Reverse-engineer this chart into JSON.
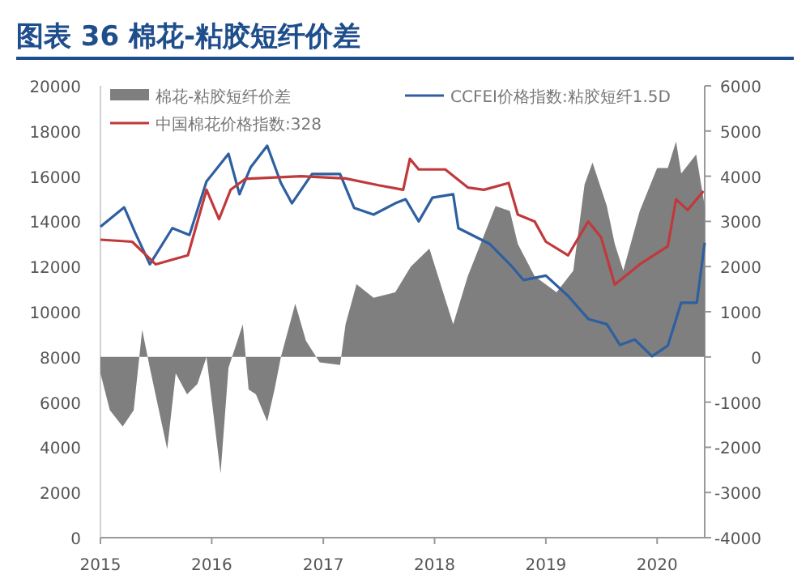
{
  "chart_data": {
    "type": "line",
    "title": "图表 36  棉花-粘胶短纤价差",
    "legend": "top",
    "xlim": [
      "2015-01-01",
      "2020-06-05"
    ],
    "xticks": [
      "2015",
      "2016",
      "2017",
      "2018",
      "2019",
      "2020"
    ],
    "ylim": [
      0,
      20000
    ],
    "yticks": [
      0,
      2000,
      4000,
      6000,
      8000,
      10000,
      12000,
      14000,
      16000,
      18000,
      20000
    ],
    "y2lim": [
      -4000,
      6000
    ],
    "y2ticks": [
      -4000,
      -3000,
      -2000,
      -1000,
      0,
      1000,
      2000,
      3000,
      4000,
      5000,
      6000
    ],
    "series": [
      {
        "name": "棉花-粘胶短纤价差",
        "type": "area",
        "axis": "y2",
        "color": "#7f7f7f",
        "x": [
          "2015-01-01",
          "2015-02-01",
          "2015-03-15",
          "2015-04-20",
          "2015-05-18",
          "2015-06-12",
          "2015-08-08",
          "2015-09-05",
          "2015-10-12",
          "2015-11-15",
          "2015-12-15",
          "2016-01-30",
          "2016-02-25",
          "2016-04-12",
          "2016-05-01",
          "2016-05-25",
          "2016-07-01",
          "2016-07-25",
          "2016-08-15",
          "2016-10-01",
          "2016-11-05",
          "2016-12-20",
          "2017-02-25",
          "2017-03-15",
          "2017-04-20",
          "2017-06-15",
          "2017-08-25",
          "2017-10-15",
          "2017-12-15",
          "2018-03-03",
          "2018-04-20",
          "2018-07-20",
          "2018-09-05",
          "2018-10-01",
          "2018-11-25",
          "2019-02-05",
          "2019-04-01",
          "2019-05-08",
          "2019-06-03",
          "2019-07-20",
          "2019-08-15",
          "2019-09-12",
          "2019-11-05",
          "2020-01-01",
          "2020-02-05",
          "2020-03-03",
          "2020-03-20",
          "2020-05-08",
          "2020-06-05"
        ],
        "values": [
          -360,
          -1180,
          -1540,
          -1180,
          600,
          -240,
          -2040,
          -360,
          -830,
          -600,
          0,
          -2580,
          -240,
          720,
          -720,
          -830,
          -1430,
          -720,
          0,
          1180,
          360,
          -120,
          -180,
          720,
          1610,
          1310,
          1430,
          2000,
          2400,
          720,
          1790,
          3340,
          3230,
          2500,
          1790,
          1430,
          1910,
          3820,
          4300,
          3340,
          2500,
          1910,
          3230,
          4180,
          4180,
          4770,
          4060,
          4480,
          3340
        ]
      },
      {
        "name": "CCFEI价格指数:粘胶短纤1.5D",
        "color": "#2e5fa0",
        "x": [
          "2015-01-01",
          "2015-03-20",
          "2015-04-25",
          "2015-06-12",
          "2015-08-25",
          "2015-10-20",
          "2015-12-15",
          "2016-02-25",
          "2016-04-01",
          "2016-05-08",
          "2016-07-01",
          "2016-08-15",
          "2016-09-20",
          "2016-11-25",
          "2017-02-25",
          "2017-04-12",
          "2017-06-15",
          "2017-08-25",
          "2017-09-28",
          "2017-11-10",
          "2017-12-25",
          "2018-03-03",
          "2018-03-20",
          "2018-07-01",
          "2018-09-12",
          "2018-10-20",
          "2019-01-01",
          "2019-03-15",
          "2019-05-20",
          "2019-07-20",
          "2019-09-01",
          "2019-10-20",
          "2019-12-15",
          "2020-02-05",
          "2020-03-20",
          "2020-05-10",
          "2020-06-05"
        ],
        "values": [
          13760,
          14620,
          13500,
          12100,
          13700,
          13400,
          15770,
          16990,
          15200,
          16400,
          17350,
          15700,
          14800,
          16100,
          16100,
          14600,
          14300,
          14800,
          14980,
          14000,
          15050,
          15200,
          13700,
          13000,
          12000,
          11400,
          11600,
          10700,
          9680,
          9450,
          8530,
          8770,
          8030,
          8500,
          10400,
          10400,
          13050
        ]
      },
      {
        "name": "中国棉花价格指数:328",
        "color": "#c0393b",
        "x": [
          "2015-01-01",
          "2015-04-15",
          "2015-07-01",
          "2015-10-15",
          "2015-12-15",
          "2016-01-25",
          "2016-03-03",
          "2016-04-20",
          "2016-10-20",
          "2017-03-15",
          "2017-07-01",
          "2017-09-20",
          "2017-10-12",
          "2017-11-10",
          "2018-02-05",
          "2018-04-20",
          "2018-06-12",
          "2018-09-01",
          "2018-10-01",
          "2018-11-25",
          "2019-01-01",
          "2019-03-15",
          "2019-05-20",
          "2019-07-01",
          "2019-08-15",
          "2019-11-05",
          "2020-02-05",
          "2020-03-03",
          "2020-04-10",
          "2020-06-01"
        ],
        "values": [
          13190,
          13100,
          12100,
          12500,
          15400,
          14100,
          15400,
          15880,
          16000,
          15900,
          15600,
          15400,
          16770,
          16300,
          16300,
          15500,
          15400,
          15700,
          14300,
          14000,
          13100,
          12500,
          14000,
          13300,
          11200,
          12100,
          12900,
          14980,
          14500,
          15340
        ]
      }
    ]
  }
}
